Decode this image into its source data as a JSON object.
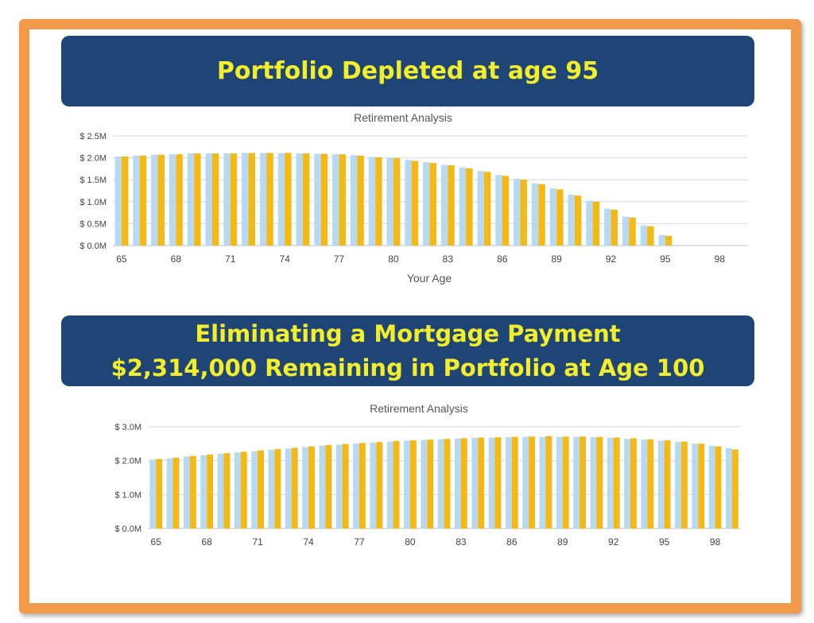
{
  "banners": {
    "top": "Portfolio Depleted at age 95",
    "bottom_line1": "Eliminating a Mortgage Payment",
    "bottom_line2": "$2,314,000 Remaining  in Portfolio at Age 100"
  },
  "colors": {
    "frame": "#f29a4a",
    "banner_bg": "#1f4577",
    "banner_text": "#f2ee2c",
    "series_blue": "#b7d9f2",
    "series_gold": "#f5b915"
  },
  "chart_data": [
    {
      "type": "bar",
      "title": "Retirement Analysis",
      "xlabel": "Your Age",
      "ylabel": "",
      "ylim": [
        0,
        2.5
      ],
      "yticks": [
        0,
        0.5,
        1.0,
        1.5,
        2.0,
        2.5
      ],
      "ytick_labels": [
        "$ 0.0M",
        "$ 0.5M",
        "$ 1.0M",
        "$ 1.5M",
        "$ 2.0M",
        "$ 2.5M"
      ],
      "xticks": [
        "65",
        "68",
        "71",
        "74",
        "77",
        "80",
        "83",
        "86",
        "89",
        "92",
        "95",
        "98"
      ],
      "categories": [
        65,
        66,
        67,
        68,
        69,
        70,
        71,
        72,
        73,
        74,
        75,
        76,
        77,
        78,
        79,
        80,
        81,
        82,
        83,
        84,
        85,
        86,
        87,
        88,
        89,
        90,
        91,
        92,
        93,
        94,
        95,
        96,
        97,
        98,
        99
      ],
      "grid": true,
      "series": [
        {
          "values": [
            2.03,
            2.05,
            2.07,
            2.08,
            2.1,
            2.1,
            2.1,
            2.11,
            2.11,
            2.11,
            2.1,
            2.09,
            2.08,
            2.06,
            2.02,
            2.0,
            1.95,
            1.9,
            1.84,
            1.78,
            1.7,
            1.61,
            1.52,
            1.42,
            1.3,
            1.16,
            1.02,
            0.84,
            0.66,
            0.46,
            0.24,
            0,
            0,
            0,
            0
          ]
        },
        {
          "values": [
            2.03,
            2.05,
            2.07,
            2.08,
            2.1,
            2.1,
            2.1,
            2.11,
            2.11,
            2.11,
            2.1,
            2.09,
            2.08,
            2.05,
            2.01,
            1.99,
            1.93,
            1.88,
            1.83,
            1.76,
            1.68,
            1.59,
            1.5,
            1.4,
            1.28,
            1.14,
            1.0,
            0.82,
            0.64,
            0.44,
            0.22,
            0,
            0,
            0,
            0
          ]
        }
      ]
    },
    {
      "type": "bar",
      "title": "Retirement Analysis",
      "xlabel": "",
      "ylabel": "",
      "ylim": [
        0,
        3.0
      ],
      "yticks": [
        0,
        1.0,
        2.0,
        3.0
      ],
      "ytick_labels": [
        "$ 0.0M",
        "$ 1.0M",
        "$ 2.0M",
        "$ 3.0M"
      ],
      "xticks": [
        "65",
        "68",
        "71",
        "74",
        "77",
        "80",
        "83",
        "86",
        "89",
        "92",
        "95",
        "98"
      ],
      "categories": [
        65,
        66,
        67,
        68,
        69,
        70,
        71,
        72,
        73,
        74,
        75,
        76,
        77,
        78,
        79,
        80,
        81,
        82,
        83,
        84,
        85,
        86,
        87,
        88,
        89,
        90,
        91,
        92,
        93,
        94,
        95,
        96,
        97,
        98,
        99
      ],
      "grid": true,
      "series": [
        {
          "values": [
            2.03,
            2.07,
            2.12,
            2.16,
            2.2,
            2.24,
            2.28,
            2.32,
            2.36,
            2.4,
            2.44,
            2.47,
            2.5,
            2.53,
            2.56,
            2.59,
            2.61,
            2.63,
            2.65,
            2.67,
            2.68,
            2.69,
            2.7,
            2.7,
            2.7,
            2.7,
            2.69,
            2.67,
            2.64,
            2.62,
            2.59,
            2.55,
            2.5,
            2.44,
            2.37
          ]
        },
        {
          "values": [
            2.05,
            2.09,
            2.14,
            2.18,
            2.22,
            2.26,
            2.3,
            2.34,
            2.38,
            2.42,
            2.46,
            2.49,
            2.52,
            2.55,
            2.58,
            2.6,
            2.62,
            2.64,
            2.66,
            2.68,
            2.69,
            2.7,
            2.71,
            2.72,
            2.71,
            2.71,
            2.7,
            2.68,
            2.66,
            2.63,
            2.6,
            2.56,
            2.5,
            2.42,
            2.33
          ]
        }
      ]
    }
  ]
}
